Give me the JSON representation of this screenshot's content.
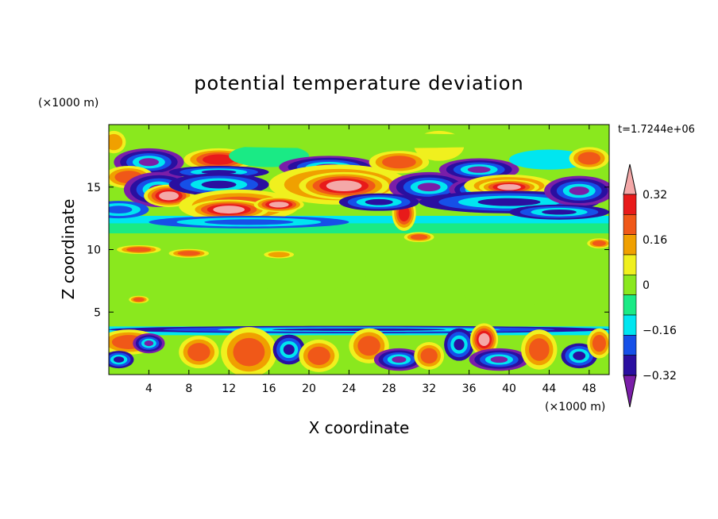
{
  "chart_data": {
    "type": "heatmap",
    "title": "potential temperature deviation",
    "xlabel": "X coordinate",
    "ylabel": "Z coordinate",
    "x_unit": "(×1000 m)",
    "y_unit": "(×1000 m)",
    "time_label": "t=1.7244e+06",
    "xlim": [
      0,
      50
    ],
    "ylim": [
      0,
      20
    ],
    "x_ticks": [
      4,
      8,
      12,
      16,
      20,
      24,
      28,
      32,
      36,
      40,
      44,
      48
    ],
    "y_ticks": [
      5,
      10,
      15
    ],
    "colorbar": {
      "levels": [
        -0.4,
        -0.32,
        -0.24,
        -0.16,
        -0.08,
        0,
        0.08,
        0.16,
        0.24,
        0.32,
        0.4
      ],
      "labels": [
        {
          "value": 0.32,
          "text": "0.32"
        },
        {
          "value": 0.16,
          "text": "0.16"
        },
        {
          "value": 0,
          "text": "0"
        },
        {
          "value": -0.16,
          "text": "−0.16"
        },
        {
          "value": -0.32,
          "text": "−0.32"
        }
      ],
      "colors": [
        "#7a1ea8",
        "#2a0fa0",
        "#1650e8",
        "#00e6f0",
        "#1aea85",
        "#8ae81e",
        "#f0f01e",
        "#f0a000",
        "#f05818",
        "#e81a1a",
        "#f4a8a8"
      ],
      "extend": "both"
    },
    "blobs": [
      {
        "x": 0.5,
        "z": 18.6,
        "rx": 1.2,
        "rz": 0.9,
        "v": 0.2
      },
      {
        "x": 4,
        "z": 17.0,
        "rx": 3.5,
        "rz": 1.1,
        "v": -0.36
      },
      {
        "x": 2,
        "z": 15.8,
        "rx": 2.5,
        "rz": 0.9,
        "v": 0.25
      },
      {
        "x": 5,
        "z": 14.8,
        "rx": 3.5,
        "rz": 1.4,
        "v": -0.36
      },
      {
        "x": 6,
        "z": 14.3,
        "rx": 2.5,
        "rz": 0.9,
        "v": 0.4
      },
      {
        "x": 1,
        "z": 13.2,
        "rx": 3,
        "rz": 0.7,
        "v": -0.2
      },
      {
        "x": 11,
        "z": 17.2,
        "rx": 3.5,
        "rz": 0.9,
        "v": 0.32
      },
      {
        "x": 11,
        "z": 16.2,
        "rx": 5,
        "rz": 0.5,
        "v": -0.3
      },
      {
        "x": 11,
        "z": 15.2,
        "rx": 5,
        "rz": 0.9,
        "v": -0.3
      },
      {
        "x": 13,
        "z": 13.5,
        "rx": 6,
        "rz": 1.3,
        "v": 0.25
      },
      {
        "x": 12,
        "z": 13.2,
        "rx": 4,
        "rz": 0.8,
        "v": 0.4
      },
      {
        "x": 17,
        "z": 13.6,
        "rx": 2.5,
        "rz": 0.6,
        "v": 0.4
      },
      {
        "x": 14,
        "z": 12.2,
        "rx": 10,
        "rz": 0.5,
        "v": -0.22
      },
      {
        "x": 16,
        "z": 17.5,
        "rx": 4,
        "rz": 0.9,
        "v": -0.05
      },
      {
        "x": 22,
        "z": 16.6,
        "rx": 5,
        "rz": 0.9,
        "v": -0.34
      },
      {
        "x": 23,
        "z": 15.2,
        "rx": 7,
        "rz": 1.6,
        "v": 0.3
      },
      {
        "x": 23.5,
        "z": 15.1,
        "rx": 4.5,
        "rz": 1.1,
        "v": 0.4
      },
      {
        "x": 29,
        "z": 17.0,
        "rx": 3,
        "rz": 0.9,
        "v": 0.24
      },
      {
        "x": 32,
        "z": 15.0,
        "rx": 4,
        "rz": 1.2,
        "v": -0.36
      },
      {
        "x": 29.5,
        "z": 12.9,
        "rx": 1.2,
        "rz": 1.4,
        "v": 0.35
      },
      {
        "x": 27,
        "z": 13.8,
        "rx": 4,
        "rz": 0.7,
        "v": -0.28
      },
      {
        "x": 33,
        "z": 18.3,
        "rx": 2.5,
        "rz": 1.2,
        "v": 0.12
      },
      {
        "x": 37,
        "z": 16.4,
        "rx": 4,
        "rz": 0.9,
        "v": -0.33
      },
      {
        "x": 37,
        "z": 14.8,
        "rx": 3,
        "rz": 0.9,
        "v": -0.36
      },
      {
        "x": 40,
        "z": 15.1,
        "rx": 4.5,
        "rz": 0.9,
        "v": 0.3
      },
      {
        "x": 40,
        "z": 15.0,
        "rx": 3,
        "rz": 0.6,
        "v": 0.4
      },
      {
        "x": 40,
        "z": 13.8,
        "rx": 9,
        "rz": 0.9,
        "v": -0.24
      },
      {
        "x": 44,
        "z": 17.2,
        "rx": 4,
        "rz": 0.8,
        "v": -0.12
      },
      {
        "x": 47,
        "z": 14.7,
        "rx": 3.5,
        "rz": 1.2,
        "v": -0.36
      },
      {
        "x": 48,
        "z": 17.3,
        "rx": 2,
        "rz": 0.9,
        "v": 0.24
      },
      {
        "x": 25,
        "z": 18.7,
        "rx": 20,
        "rz": 0.6,
        "v": 0.02
      },
      {
        "x": 45,
        "z": 13.0,
        "rx": 5,
        "rz": 0.6,
        "v": -0.3
      },
      {
        "x": 3,
        "z": 10.0,
        "rx": 2.2,
        "rz": 0.35,
        "v": 0.3
      },
      {
        "x": 8,
        "z": 9.7,
        "rx": 2,
        "rz": 0.35,
        "v": 0.25
      },
      {
        "x": 17,
        "z": 9.6,
        "rx": 1.5,
        "rz": 0.3,
        "v": 0.2
      },
      {
        "x": 31,
        "z": 11.0,
        "rx": 1.5,
        "rz": 0.4,
        "v": 0.3
      },
      {
        "x": 49,
        "z": 10.5,
        "rx": 1.2,
        "rz": 0.4,
        "v": 0.28
      },
      {
        "x": 10,
        "z": 6.5,
        "rx": 6,
        "rz": 1.6,
        "v": 0.04
      },
      {
        "x": 30,
        "z": 6.0,
        "rx": 8,
        "rz": 2.2,
        "v": 0.05
      },
      {
        "x": 3,
        "z": 6.0,
        "rx": 1,
        "rz": 0.3,
        "v": 0.25
      },
      {
        "x": 40,
        "z": 7.0,
        "rx": 5,
        "rz": 1.6,
        "v": 0.04
      },
      {
        "x": 25,
        "z": 3.6,
        "rx": 25,
        "rz": 0.3,
        "v": -0.3
      },
      {
        "x": 2,
        "z": 2.6,
        "rx": 3,
        "rz": 1.0,
        "v": 0.25
      },
      {
        "x": 4,
        "z": 2.5,
        "rx": 1.6,
        "rz": 0.8,
        "v": -0.34
      },
      {
        "x": 1,
        "z": 1.2,
        "rx": 1.5,
        "rz": 0.7,
        "v": -0.3
      },
      {
        "x": 9,
        "z": 1.8,
        "rx": 2,
        "rz": 1.3,
        "v": 0.24
      },
      {
        "x": 14,
        "z": 1.8,
        "rx": 2.8,
        "rz": 2.0,
        "v": 0.3
      },
      {
        "x": 18,
        "z": 2.0,
        "rx": 1.6,
        "rz": 1.2,
        "v": -0.3
      },
      {
        "x": 21,
        "z": 1.5,
        "rx": 2,
        "rz": 1.3,
        "v": 0.28
      },
      {
        "x": 26,
        "z": 2.3,
        "rx": 2,
        "rz": 1.4,
        "v": 0.3
      },
      {
        "x": 29,
        "z": 1.2,
        "rx": 2.5,
        "rz": 0.9,
        "v": -0.35
      },
      {
        "x": 32,
        "z": 1.5,
        "rx": 1.5,
        "rz": 1.1,
        "v": 0.3
      },
      {
        "x": 35,
        "z": 2.4,
        "rx": 1.5,
        "rz": 1.3,
        "v": -0.28
      },
      {
        "x": 37.5,
        "z": 2.8,
        "rx": 1.4,
        "rz": 1.3,
        "v": 0.4
      },
      {
        "x": 39,
        "z": 1.2,
        "rx": 3,
        "rz": 0.9,
        "v": -0.36
      },
      {
        "x": 43,
        "z": 2.0,
        "rx": 1.8,
        "rz": 1.6,
        "v": 0.3
      },
      {
        "x": 47,
        "z": 1.5,
        "rx": 1.8,
        "rz": 1.0,
        "v": -0.3
      },
      {
        "x": 49,
        "z": 2.5,
        "rx": 1.2,
        "rz": 1.2,
        "v": 0.25
      }
    ]
  }
}
